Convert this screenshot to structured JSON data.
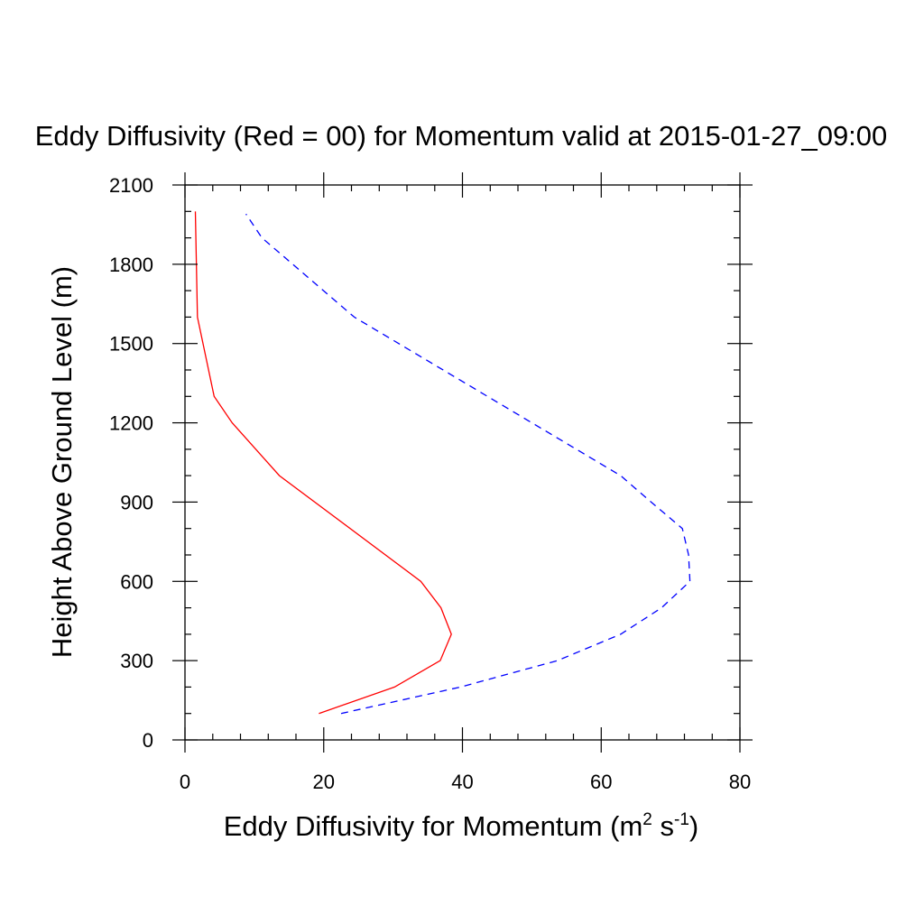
{
  "chart_data": {
    "type": "line",
    "title": "Eddy Diffusivity (Red = 00) for Momentum valid at 2015-01-27_09:00",
    "xlabel_text": "Eddy Diffusivity for Momentum (m",
    "xlabel_sup1": "2",
    "xlabel_mid": " s",
    "xlabel_sup2": "-1",
    "xlabel_end": ")",
    "ylabel": "Height Above Ground Level (m)",
    "xlim": [
      0,
      80
    ],
    "ylim": [
      0,
      2100
    ],
    "x_ticks": [
      0,
      20,
      40,
      60,
      80
    ],
    "x_tick_labels": [
      "0",
      "20",
      "40",
      "60",
      "80"
    ],
    "x_minor_step": 4,
    "y_ticks": [
      0,
      300,
      600,
      900,
      1200,
      1500,
      1800,
      2100
    ],
    "y_tick_labels": [
      "0",
      "300",
      "600",
      "900",
      "1200",
      "1500",
      "1800",
      "2100"
    ],
    "y_minor_step": 100,
    "grid": false,
    "series": [
      {
        "color": "#ff0000",
        "dash": "solid",
        "points": [
          {
            "x": 19.3,
            "y": 100
          },
          {
            "x": 30.2,
            "y": 200
          },
          {
            "x": 36.8,
            "y": 300
          },
          {
            "x": 38.4,
            "y": 400
          },
          {
            "x": 36.9,
            "y": 500
          },
          {
            "x": 34.0,
            "y": 600
          },
          {
            "x": 13.6,
            "y": 1000
          },
          {
            "x": 6.8,
            "y": 1200
          },
          {
            "x": 4.2,
            "y": 1300
          },
          {
            "x": 1.8,
            "y": 1600
          },
          {
            "x": 1.5,
            "y": 2000
          }
        ]
      },
      {
        "color": "#0000ff",
        "dash": "dashed",
        "points": [
          {
            "x": 22.5,
            "y": 100
          },
          {
            "x": 39.7,
            "y": 200
          },
          {
            "x": 53.7,
            "y": 300
          },
          {
            "x": 62.8,
            "y": 400
          },
          {
            "x": 68.7,
            "y": 500
          },
          {
            "x": 72.8,
            "y": 600
          },
          {
            "x": 72.6,
            "y": 700
          },
          {
            "x": 71.7,
            "y": 800
          },
          {
            "x": 67.2,
            "y": 900
          },
          {
            "x": 62.8,
            "y": 1000
          },
          {
            "x": 24.4,
            "y": 1600
          },
          {
            "x": 11.1,
            "y": 1900
          },
          {
            "x": 8.8,
            "y": 1990
          }
        ]
      }
    ]
  }
}
